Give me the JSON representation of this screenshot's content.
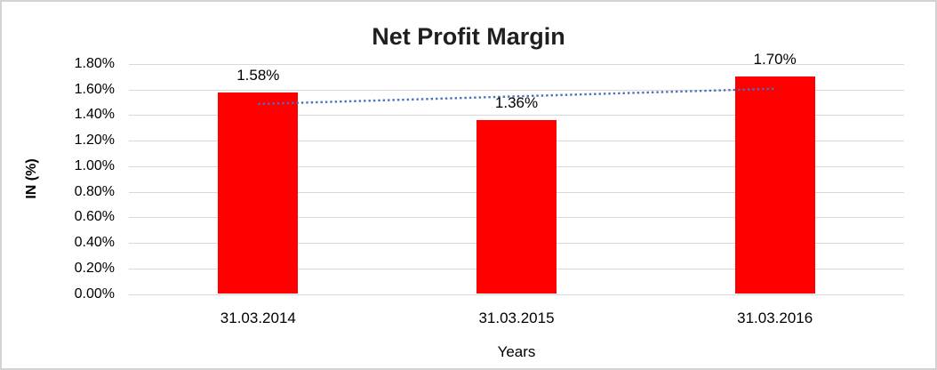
{
  "chart_data": {
    "type": "bar",
    "title": "Net Profit Margin",
    "categories": [
      "31.03.2014",
      "31.03.2015",
      "31.03.2016"
    ],
    "values": [
      1.58,
      1.36,
      1.7
    ],
    "value_labels": [
      "1.58%",
      "1.36%",
      "1.70%"
    ],
    "xlabel": "Years",
    "ylabel": "IN (%)",
    "ylim": [
      0,
      1.8
    ],
    "y_tick_step": 0.2,
    "y_tick_labels": [
      "0.00%",
      "0.20%",
      "0.40%",
      "0.60%",
      "0.80%",
      "1.00%",
      "1.20%",
      "1.40%",
      "1.60%",
      "1.80%"
    ],
    "grid": true,
    "legend": "none",
    "bar_color": "#ff0000",
    "gridline_color": "#d9d9d9",
    "trendline": {
      "type": "linear",
      "style": "dotted",
      "color": "#4472c4",
      "start_value": 1.487,
      "end_value": 1.607
    }
  }
}
